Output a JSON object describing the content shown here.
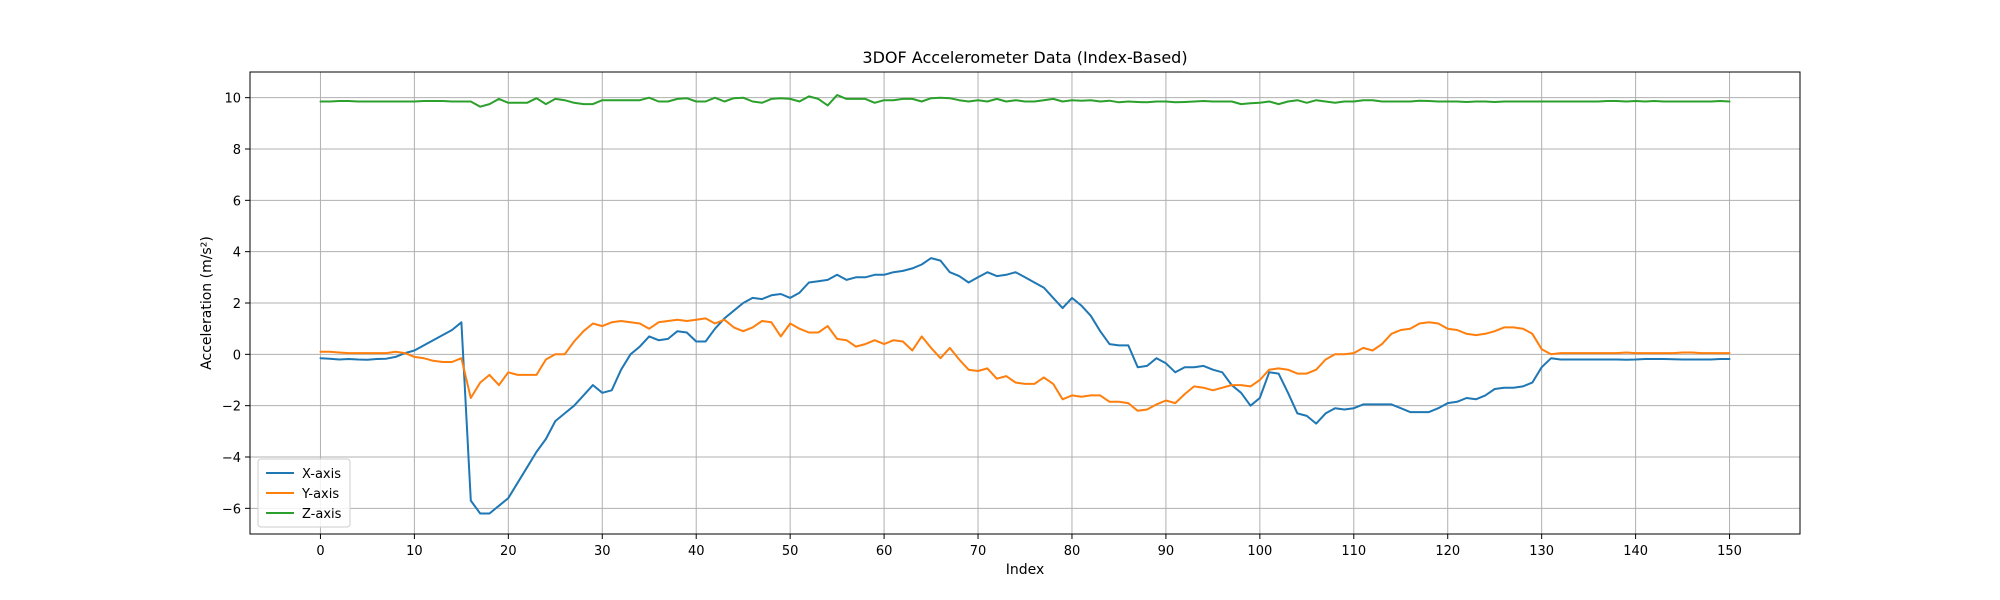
{
  "chart_data": {
    "type": "line",
    "title": "3DOF Accelerometer Data (Index-Based)",
    "xlabel": "Index",
    "ylabel": "Acceleration (m/s²)",
    "xlim": [
      -7.5,
      157.5
    ],
    "ylim": [
      -7,
      11
    ],
    "xticks": [
      0,
      10,
      20,
      30,
      40,
      50,
      60,
      70,
      80,
      90,
      100,
      110,
      120,
      130,
      140,
      150
    ],
    "yticks": [
      -6,
      -4,
      -2,
      0,
      2,
      4,
      6,
      8,
      10
    ],
    "grid": true,
    "legend_position": "lower-left",
    "x": [
      0,
      1,
      2,
      3,
      4,
      5,
      6,
      7,
      8,
      9,
      10,
      11,
      12,
      13,
      14,
      15,
      16,
      17,
      18,
      19,
      20,
      21,
      22,
      23,
      24,
      25,
      26,
      27,
      28,
      29,
      30,
      31,
      32,
      33,
      34,
      35,
      36,
      37,
      38,
      39,
      40,
      41,
      42,
      43,
      44,
      45,
      46,
      47,
      48,
      49,
      50,
      51,
      52,
      53,
      54,
      55,
      56,
      57,
      58,
      59,
      60,
      61,
      62,
      63,
      64,
      65,
      66,
      67,
      68,
      69,
      70,
      71,
      72,
      73,
      74,
      75,
      76,
      77,
      78,
      79,
      80,
      81,
      82,
      83,
      84,
      85,
      86,
      87,
      88,
      89,
      90,
      91,
      92,
      93,
      94,
      95,
      96,
      97,
      98,
      99,
      100,
      101,
      102,
      103,
      104,
      105,
      106,
      107,
      108,
      109,
      110,
      111,
      112,
      113,
      114,
      115,
      116,
      117,
      118,
      119,
      120,
      121,
      122,
      123,
      124,
      125,
      126,
      127,
      128,
      129,
      130,
      131,
      132,
      133,
      134,
      135,
      136,
      137,
      138,
      139,
      140,
      141,
      142,
      143,
      144,
      145,
      146,
      147,
      148,
      149,
      150
    ],
    "series": [
      {
        "name": "X-axis",
        "color": "#1f77b4",
        "values": [
          -0.15,
          -0.17,
          -0.2,
          -0.18,
          -0.2,
          -0.21,
          -0.18,
          -0.17,
          -0.1,
          0.05,
          0.15,
          0.35,
          0.55,
          0.75,
          0.95,
          1.25,
          -5.7,
          -6.2,
          -6.2,
          -5.9,
          -5.6,
          -5.0,
          -4.4,
          -3.8,
          -3.3,
          -2.6,
          -2.3,
          -2.0,
          -1.6,
          -1.2,
          -1.5,
          -1.4,
          -0.6,
          0.0,
          0.3,
          0.7,
          0.55,
          0.6,
          0.9,
          0.85,
          0.5,
          0.5,
          1.0,
          1.4,
          1.7,
          2.0,
          2.2,
          2.15,
          2.3,
          2.35,
          2.2,
          2.4,
          2.8,
          2.85,
          2.9,
          3.1,
          2.9,
          3.0,
          3.0,
          3.1,
          3.1,
          3.2,
          3.25,
          3.35,
          3.5,
          3.75,
          3.65,
          3.2,
          3.05,
          2.8,
          3.0,
          3.2,
          3.05,
          3.1,
          3.2,
          3.0,
          2.8,
          2.6,
          2.2,
          1.8,
          2.2,
          1.9,
          1.5,
          0.9,
          0.4,
          0.35,
          0.35,
          -0.5,
          -0.45,
          -0.15,
          -0.35,
          -0.7,
          -0.5,
          -0.5,
          -0.45,
          -0.6,
          -0.7,
          -1.2,
          -1.5,
          -2.0,
          -1.7,
          -0.7,
          -0.75,
          -1.5,
          -2.3,
          -2.4,
          -2.7,
          -2.3,
          -2.1,
          -2.15,
          -2.1,
          -1.95,
          -1.95,
          -1.95,
          -1.95,
          -2.1,
          -2.25,
          -2.25,
          -2.25,
          -2.1,
          -1.9,
          -1.85,
          -1.7,
          -1.75,
          -1.6,
          -1.35,
          -1.3,
          -1.3,
          -1.25,
          -1.1,
          -0.5,
          -0.15,
          -0.2,
          -0.2,
          -0.2,
          -0.2,
          -0.2,
          -0.2,
          -0.2,
          -0.21,
          -0.2,
          -0.18,
          -0.18,
          -0.18,
          -0.19,
          -0.2,
          -0.2,
          -0.2,
          -0.2,
          -0.18,
          -0.18
        ]
      },
      {
        "name": "Y-axis",
        "color": "#ff7f0e",
        "values": [
          0.1,
          0.1,
          0.07,
          0.05,
          0.05,
          0.05,
          0.05,
          0.05,
          0.1,
          0.05,
          -0.1,
          -0.15,
          -0.25,
          -0.3,
          -0.3,
          -0.15,
          -1.7,
          -1.1,
          -0.8,
          -1.2,
          -0.7,
          -0.8,
          -0.8,
          -0.8,
          -0.2,
          0.0,
          0.0,
          0.5,
          0.9,
          1.2,
          1.1,
          1.25,
          1.3,
          1.25,
          1.2,
          1.0,
          1.25,
          1.3,
          1.35,
          1.3,
          1.35,
          1.4,
          1.2,
          1.35,
          1.05,
          0.9,
          1.05,
          1.3,
          1.25,
          0.7,
          1.2,
          1.0,
          0.85,
          0.85,
          1.1,
          0.6,
          0.55,
          0.3,
          0.4,
          0.55,
          0.4,
          0.55,
          0.5,
          0.15,
          0.7,
          0.25,
          -0.15,
          0.25,
          -0.2,
          -0.6,
          -0.65,
          -0.55,
          -0.95,
          -0.85,
          -1.1,
          -1.15,
          -1.15,
          -0.9,
          -1.15,
          -1.75,
          -1.6,
          -1.65,
          -1.6,
          -1.6,
          -1.85,
          -1.85,
          -1.9,
          -2.2,
          -2.15,
          -1.95,
          -1.8,
          -1.9,
          -1.55,
          -1.25,
          -1.3,
          -1.4,
          -1.3,
          -1.2,
          -1.2,
          -1.25,
          -1.0,
          -0.6,
          -0.55,
          -0.6,
          -0.75,
          -0.75,
          -0.6,
          -0.2,
          0.0,
          0.0,
          0.05,
          0.25,
          0.15,
          0.4,
          0.8,
          0.95,
          1.0,
          1.2,
          1.25,
          1.2,
          1.0,
          0.95,
          0.8,
          0.75,
          0.8,
          0.9,
          1.05,
          1.05,
          1.0,
          0.8,
          0.2,
          0.0,
          0.05,
          0.05,
          0.05,
          0.05,
          0.05,
          0.05,
          0.05,
          0.07,
          0.05,
          0.05,
          0.05,
          0.05,
          0.05,
          0.07,
          0.07,
          0.05,
          0.05,
          0.05,
          0.05
        ]
      },
      {
        "name": "Z-axis",
        "color": "#2ca02c",
        "values": [
          9.85,
          9.85,
          9.87,
          9.87,
          9.85,
          9.85,
          9.85,
          9.85,
          9.85,
          9.85,
          9.85,
          9.87,
          9.87,
          9.87,
          9.85,
          9.85,
          9.85,
          9.65,
          9.75,
          9.95,
          9.8,
          9.8,
          9.8,
          9.98,
          9.75,
          9.95,
          9.9,
          9.8,
          9.75,
          9.75,
          9.9,
          9.9,
          9.9,
          9.9,
          9.9,
          10.0,
          9.85,
          9.85,
          9.95,
          9.98,
          9.85,
          9.85,
          10.0,
          9.85,
          9.98,
          10.0,
          9.85,
          9.8,
          9.95,
          9.98,
          9.95,
          9.85,
          10.05,
          9.95,
          9.7,
          10.1,
          9.95,
          9.95,
          9.95,
          9.8,
          9.9,
          9.9,
          9.95,
          9.95,
          9.85,
          9.98,
          10.0,
          9.98,
          9.9,
          9.85,
          9.9,
          9.85,
          9.95,
          9.85,
          9.9,
          9.85,
          9.85,
          9.9,
          9.95,
          9.85,
          9.9,
          9.88,
          9.9,
          9.85,
          9.88,
          9.82,
          9.85,
          9.83,
          9.82,
          9.85,
          9.85,
          9.82,
          9.83,
          9.85,
          9.87,
          9.85,
          9.85,
          9.85,
          9.75,
          9.78,
          9.8,
          9.85,
          9.75,
          9.85,
          9.9,
          9.8,
          9.9,
          9.85,
          9.8,
          9.85,
          9.85,
          9.9,
          9.9,
          9.85,
          9.85,
          9.85,
          9.85,
          9.88,
          9.87,
          9.85,
          9.85,
          9.85,
          9.83,
          9.85,
          9.85,
          9.83,
          9.85,
          9.85,
          9.85,
          9.85,
          9.85,
          9.85,
          9.85,
          9.85,
          9.85,
          9.85,
          9.85,
          9.87,
          9.87,
          9.85,
          9.87,
          9.85,
          9.87,
          9.85,
          9.85,
          9.85,
          9.85,
          9.85,
          9.85,
          9.87,
          9.85
        ]
      }
    ]
  }
}
